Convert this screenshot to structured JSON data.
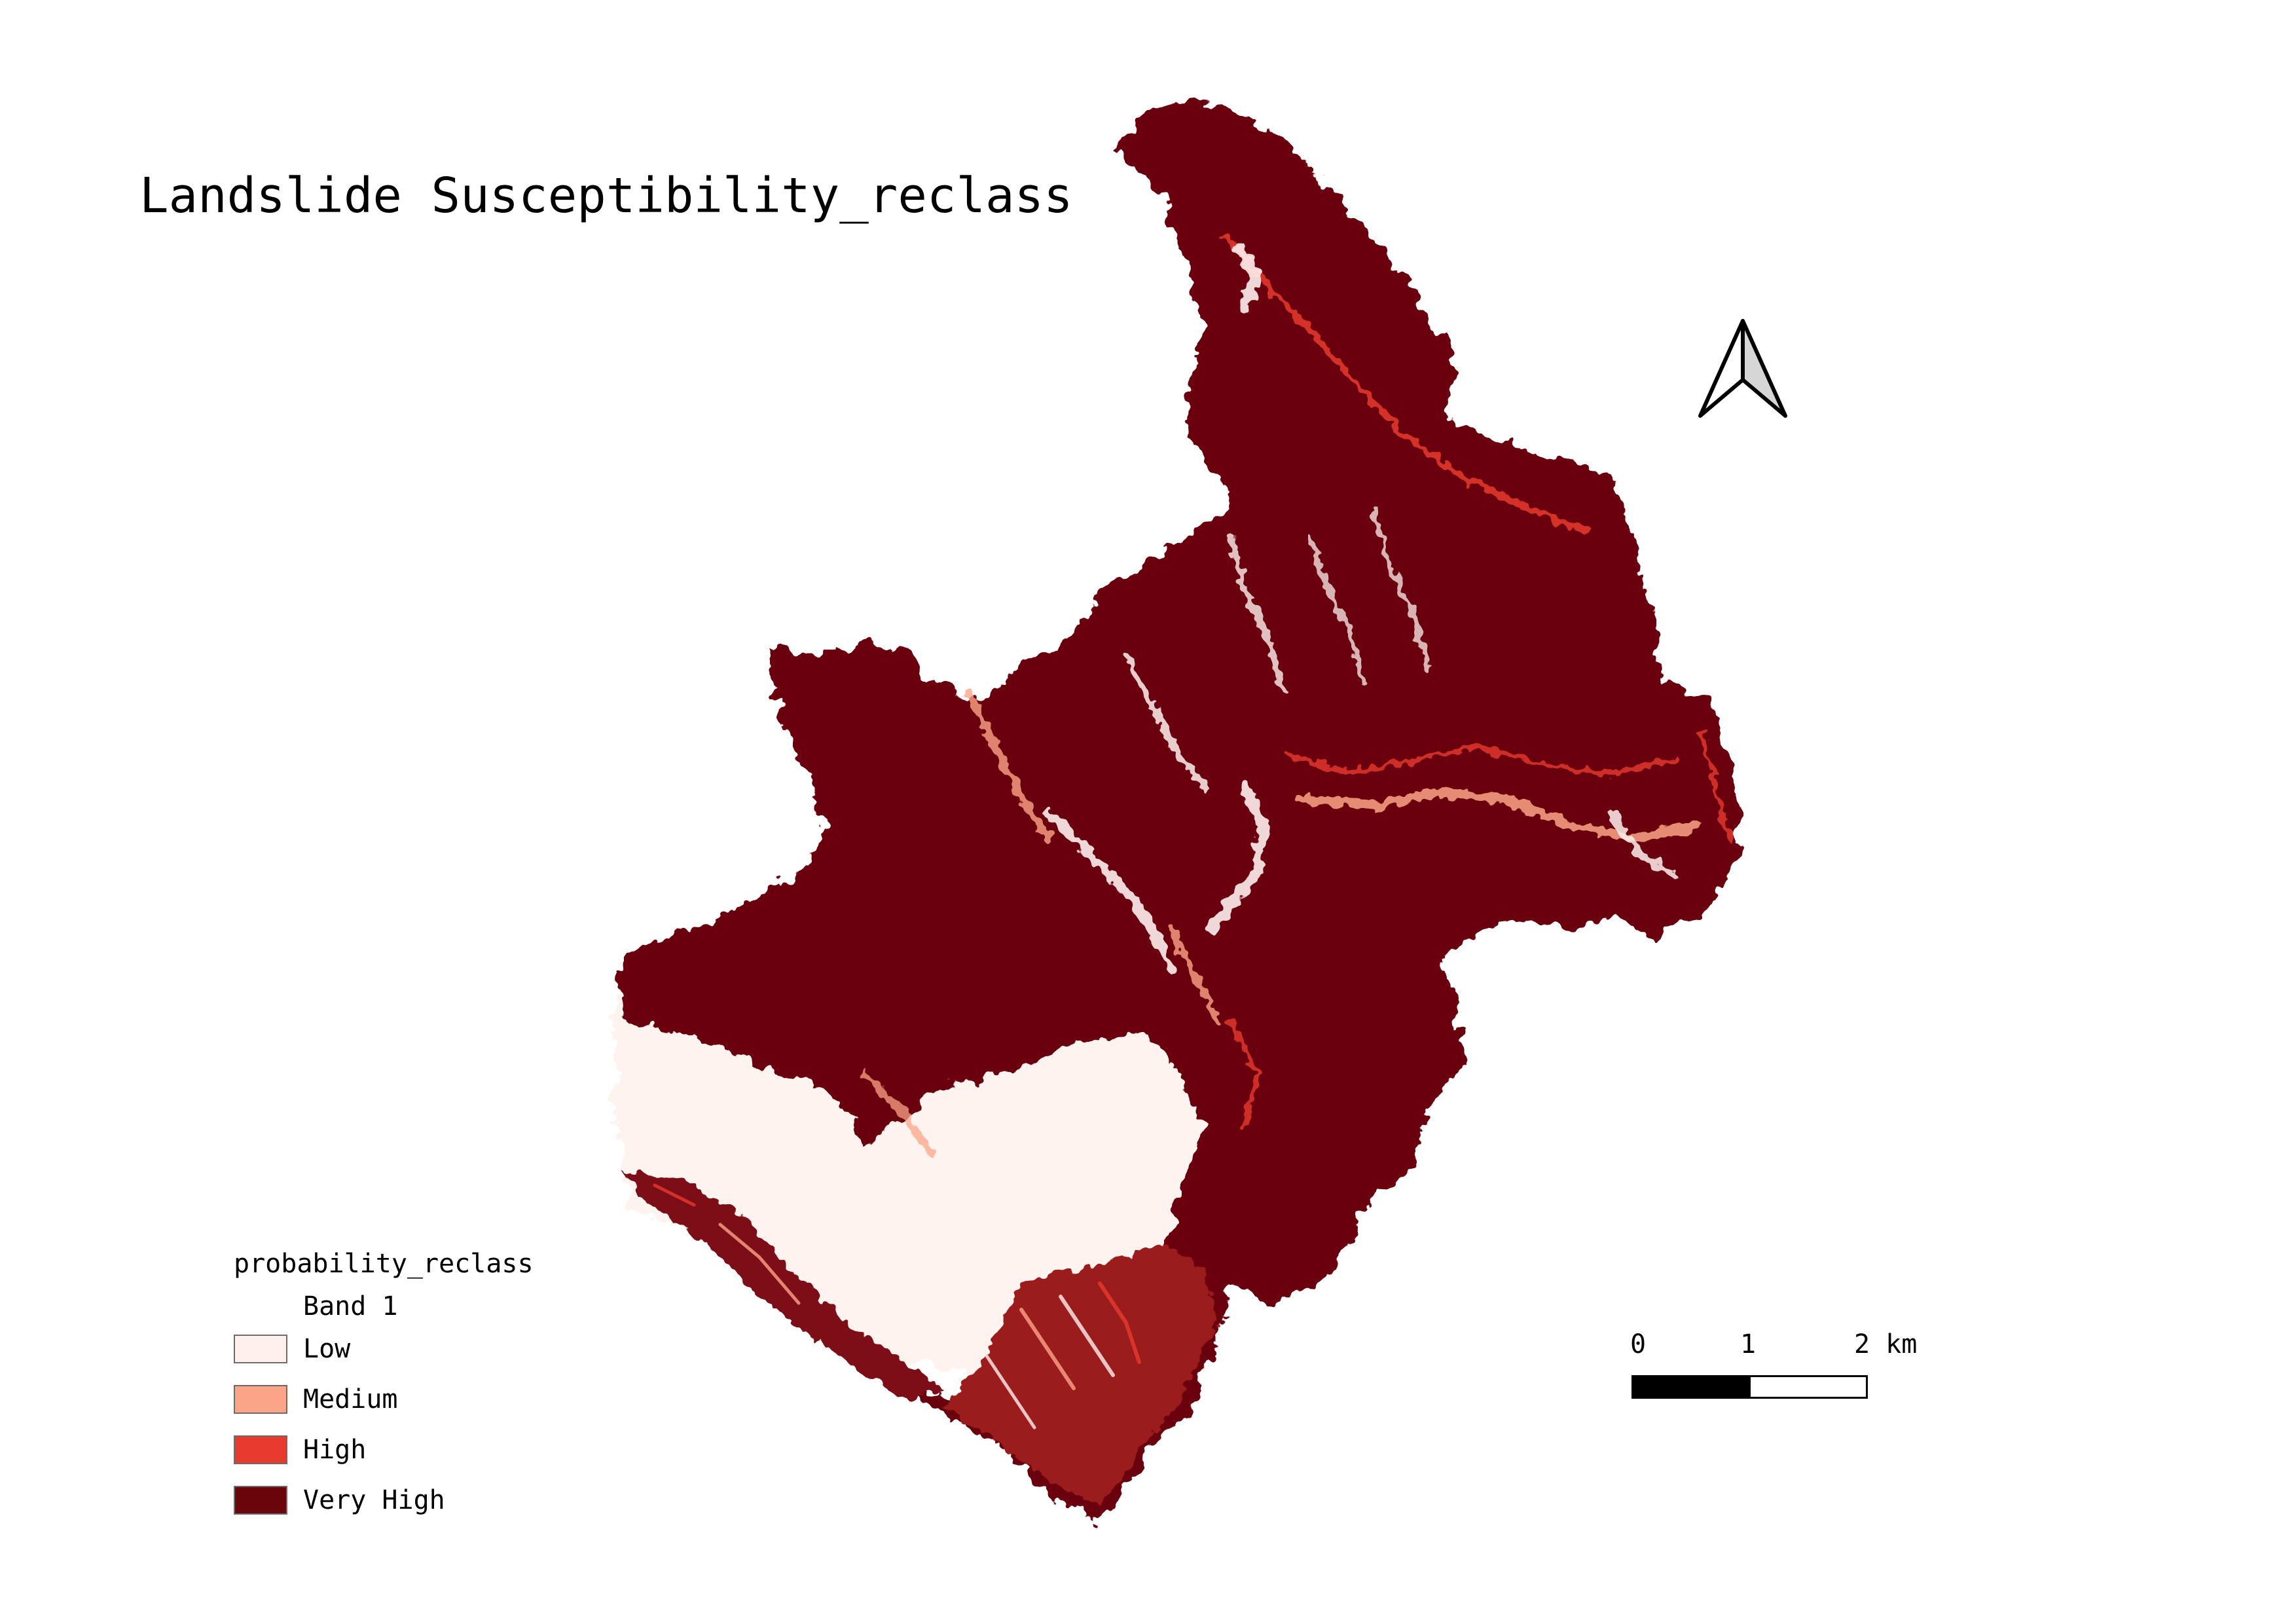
{
  "title": "Landslide Susceptibility_reclass",
  "legend": {
    "layer_name": "probability_reclass",
    "band_label": "Band 1",
    "classes": [
      {
        "label": "Low",
        "color": "#fff0ee"
      },
      {
        "label": "Medium",
        "color": "#fca487"
      },
      {
        "label": "High",
        "color": "#e83a2e"
      },
      {
        "label": "Very High",
        "color": "#6b050c"
      }
    ]
  },
  "scale_bar": {
    "labels": [
      "0",
      "1",
      "2 km"
    ]
  },
  "north_arrow": {
    "icon": "north-arrow-icon"
  },
  "colors": {
    "very_high": "#6b050c",
    "high": "#e83a2e",
    "medium": "#fca487",
    "low": "#fff0ee"
  }
}
